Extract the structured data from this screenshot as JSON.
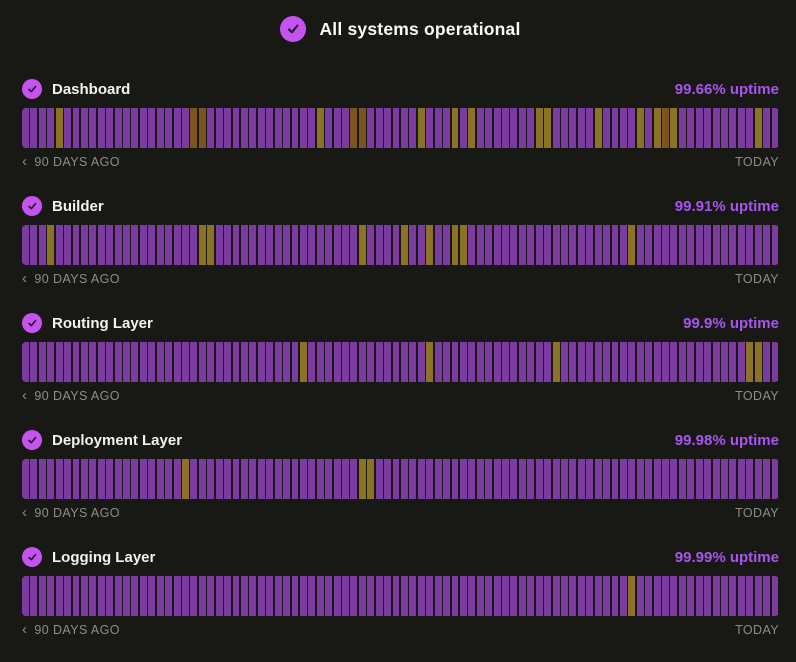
{
  "header": {
    "title": "All systems operational",
    "icon": "check-circle"
  },
  "timeline": {
    "days": 90,
    "left_label": "90 DAYS AGO",
    "right_label": "TODAY",
    "chevron": "‹"
  },
  "colors": {
    "background": "#181815",
    "accent": "#c653f0",
    "check_mark": "#221d26",
    "uptime_text": "#a855f0",
    "bar_up": "#7c3ba1",
    "bar_degraded": "#8a7326",
    "bar_outage": "#7b541e",
    "muted_text": "#8f8d85"
  },
  "services": [
    {
      "name": "Dashboard",
      "uptime_label": "99.66% uptime",
      "icon": "check-circle",
      "incidents": {
        "4": "degraded",
        "20": "outage",
        "21": "outage",
        "35": "degraded",
        "39": "outage",
        "40": "outage",
        "47": "degraded",
        "51": "degraded",
        "53": "degraded",
        "61": "degraded",
        "62": "degraded",
        "68": "degraded",
        "73": "degraded",
        "75": "degraded",
        "76": "outage",
        "77": "degraded",
        "87": "degraded"
      }
    },
    {
      "name": "Builder",
      "uptime_label": "99.91% uptime",
      "icon": "check-circle",
      "incidents": {
        "3": "degraded",
        "21": "degraded",
        "22": "degraded",
        "40": "degraded",
        "45": "degraded",
        "48": "degraded",
        "51": "degraded",
        "52": "degraded",
        "72": "degraded"
      }
    },
    {
      "name": "Routing Layer",
      "uptime_label": "99.9% uptime",
      "icon": "check-circle",
      "incidents": {
        "33": "degraded",
        "48": "degraded",
        "63": "degraded",
        "86": "degraded",
        "87": "degraded"
      }
    },
    {
      "name": "Deployment Layer",
      "uptime_label": "99.98% uptime",
      "icon": "check-circle",
      "incidents": {
        "19": "degraded",
        "40": "degraded",
        "41": "degraded"
      }
    },
    {
      "name": "Logging Layer",
      "uptime_label": "99.99% uptime",
      "icon": "check-circle",
      "incidents": {
        "72": "degraded"
      }
    }
  ]
}
